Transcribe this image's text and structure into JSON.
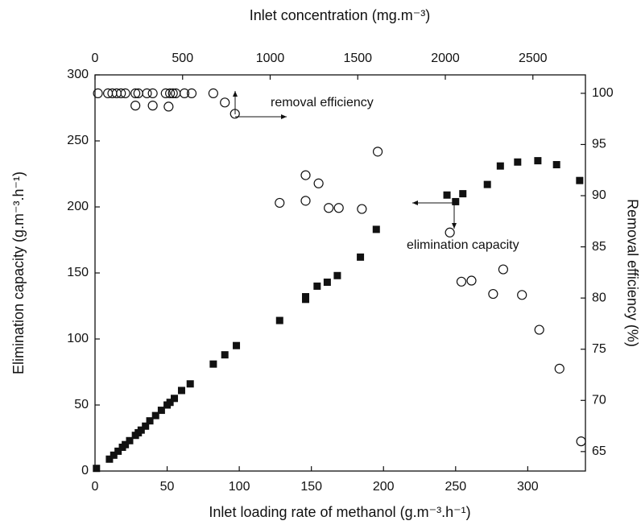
{
  "chart_data": {
    "type": "scatter",
    "xlabel": "Inlet loading rate of methanol (g.m⁻³.h⁻¹)",
    "ylabel": "Elimination capacity (g.m⁻³.h⁻¹)",
    "y2label": "Removal efficiency (%)",
    "x2label": "Inlet concentration (mg.m⁻³)",
    "xlim": [
      0,
      340
    ],
    "xticks": [
      0,
      50,
      100,
      150,
      200,
      250,
      300
    ],
    "ylim": [
      0,
      300
    ],
    "yticks": [
      0,
      50,
      100,
      150,
      200,
      250,
      300
    ],
    "y2lim": [
      63.1,
      101.8
    ],
    "y2ticks": [
      65,
      70,
      75,
      80,
      85,
      90,
      95,
      100
    ],
    "x2lim": [
      0,
      2800
    ],
    "x2ticks": [
      0,
      500,
      1000,
      1500,
      2000,
      2500
    ],
    "annotations": [
      "removal efficiency",
      "elimination capacity"
    ],
    "series": [
      {
        "marker": "square",
        "color": "#111111",
        "x": [
          1,
          10,
          13,
          16,
          19,
          21,
          24,
          28,
          30,
          32,
          35,
          38,
          42,
          46,
          50,
          52,
          55,
          60,
          66,
          82,
          90,
          98,
          128,
          146,
          146,
          154,
          161,
          168,
          184,
          195,
          244,
          250,
          255,
          272,
          281,
          293,
          307,
          320,
          336
        ],
        "values": [
          2,
          9,
          12,
          15,
          18,
          20,
          23,
          27,
          29,
          31,
          34,
          38,
          42,
          46,
          50,
          52,
          55,
          61,
          66,
          81,
          88,
          95,
          114,
          130,
          132,
          140,
          143,
          148,
          162,
          183,
          209,
          204,
          210,
          217,
          231,
          234,
          235,
          232,
          220
        ]
      },
      {
        "marker": "circle",
        "color": "#111111",
        "axis": "y2",
        "x": [
          2,
          9,
          12,
          15,
          18,
          21,
          28,
          30,
          36,
          40,
          49,
          52,
          54,
          56,
          62,
          67,
          82,
          28,
          40,
          51,
          90,
          97,
          128,
          146,
          146,
          155,
          162,
          169,
          185,
          196,
          246,
          254,
          261,
          276,
          283,
          296,
          308,
          322,
          337
        ],
        "values": [
          100,
          100,
          100,
          100,
          100,
          100,
          100,
          100,
          100,
          100,
          100,
          100,
          100,
          100,
          100,
          100,
          100,
          98.8,
          98.8,
          98.7,
          99.1,
          98.0,
          89.3,
          92.0,
          89.5,
          91.2,
          88.8,
          88.8,
          88.7,
          94.3,
          86.4,
          81.6,
          81.7,
          80.4,
          82.8,
          80.3,
          76.9,
          73.1,
          66.0
        ]
      }
    ]
  }
}
